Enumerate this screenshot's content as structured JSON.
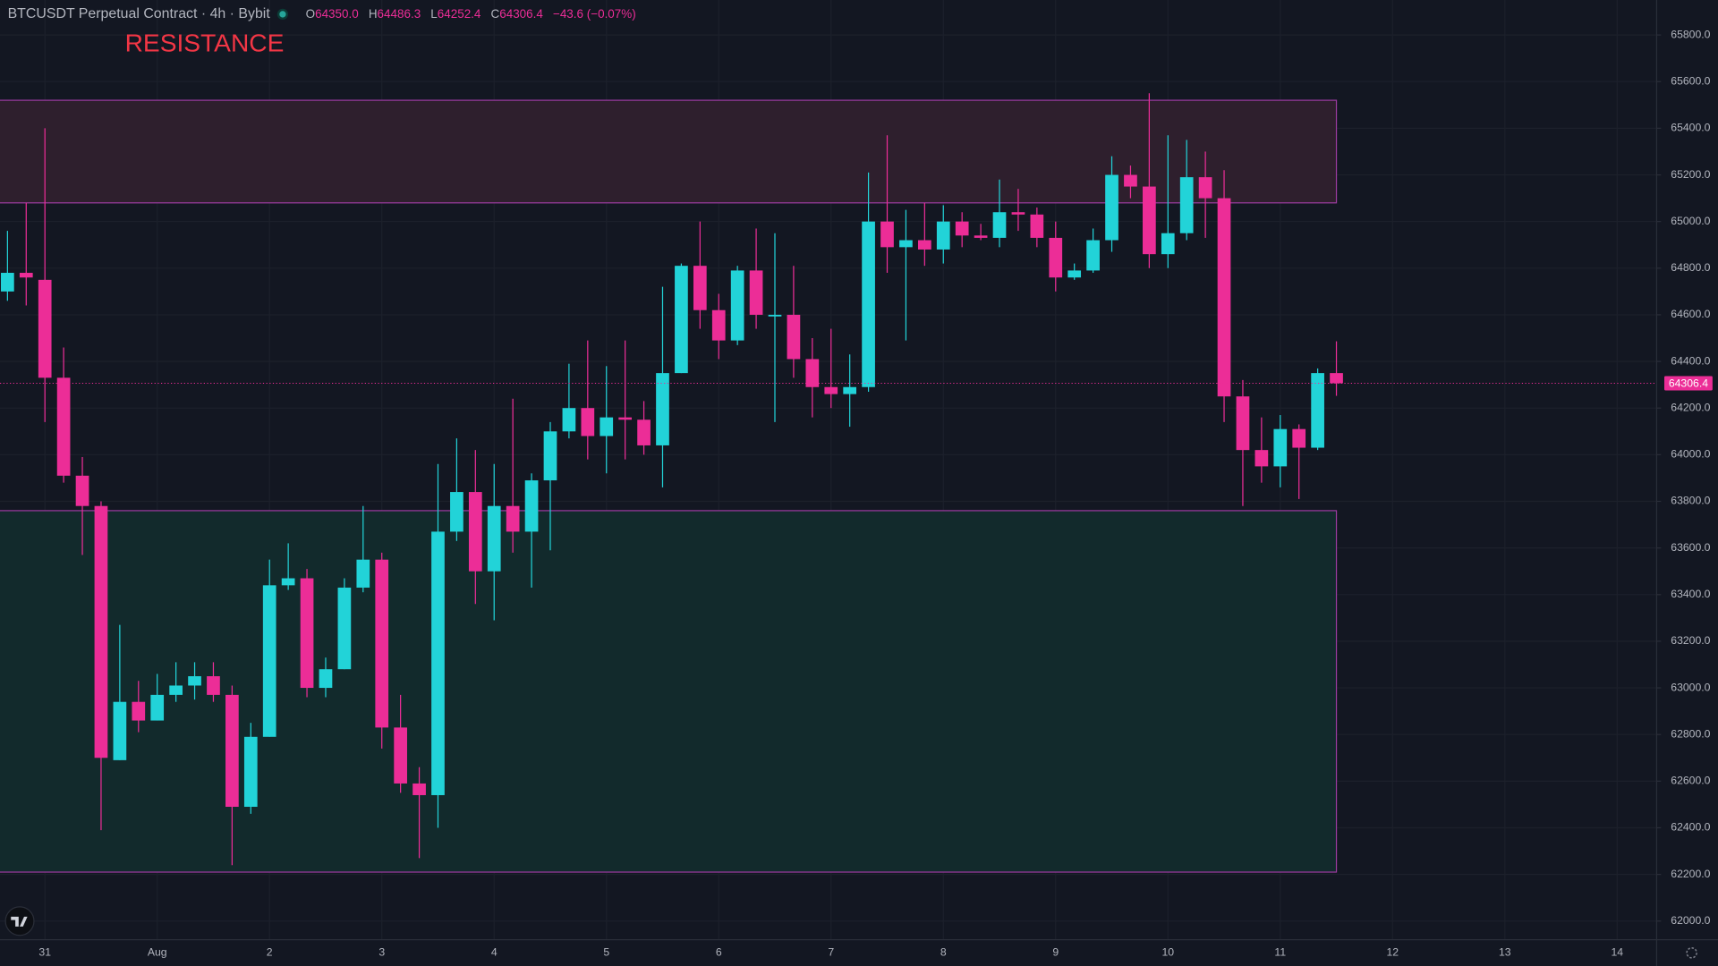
{
  "chart_data": {
    "type": "candlestick",
    "title": "BTCUSDT Perpetual Contract · 4h · Bybit",
    "ohlc_legend": [
      {
        "label": "O",
        "value": "64350.0"
      },
      {
        "label": "H",
        "value": "64486.3"
      },
      {
        "label": "L",
        "value": "64252.4"
      },
      {
        "label": "C",
        "value": "64306.4"
      }
    ],
    "change": "−43.6 (−0.07%)",
    "annotation": "RESISTANCE",
    "up_color": "#22d3d8",
    "down_color": "#ec2d97",
    "categories": [
      null,
      null,
      "31",
      null,
      null,
      null,
      null,
      null,
      "Aug",
      null,
      null,
      null,
      null,
      null,
      "2",
      null,
      null,
      null,
      null,
      null,
      "3",
      null,
      null,
      null,
      null,
      null,
      "4",
      null,
      null,
      null,
      null,
      null,
      "5",
      null,
      null,
      null,
      null,
      null,
      "6",
      null,
      null,
      null,
      null,
      null,
      "7",
      null,
      null,
      null,
      null,
      null,
      "8",
      null,
      null,
      null,
      null,
      null,
      "9",
      null,
      null,
      null,
      null,
      null,
      "10",
      null,
      null,
      null,
      null,
      null,
      "11",
      null,
      null,
      null,
      null,
      null,
      "12",
      null,
      null,
      null,
      null,
      null,
      "13",
      null,
      null,
      null,
      null,
      null,
      "14",
      null
    ],
    "open": [
      64700,
      64780,
      64750,
      64330,
      63910,
      63780,
      62690,
      62940,
      62860,
      62970,
      63010,
      63050,
      62970,
      62490,
      62790,
      63440,
      63470,
      63000,
      63080,
      63430,
      63550,
      62830,
      62590,
      62540,
      63670,
      63840,
      63500,
      63780,
      63670,
      63890,
      64100,
      64200,
      64080,
      64160,
      64150,
      64040,
      64350,
      64810,
      64620,
      64490,
      64790,
      64600,
      64600,
      64410,
      64290,
      64260,
      64290,
      65000,
      64890,
      64920,
      64880,
      65000,
      64940,
      64930,
      65040,
      65030,
      64930,
      64760,
      64790,
      64920,
      65200,
      65150,
      64860,
      64950,
      65190,
      65100,
      64250,
      64020,
      63950,
      64110,
      64030,
      64350,
      null,
      null,
      null,
      null,
      null,
      null,
      null,
      null,
      null,
      null,
      null,
      null,
      null,
      null,
      null,
      null
    ],
    "high": [
      64960,
      65080,
      65400,
      64460,
      63990,
      63800,
      63270,
      63030,
      63060,
      63110,
      63110,
      63110,
      63010,
      62850,
      63550,
      63620,
      63510,
      63130,
      63470,
      63780,
      63580,
      62970,
      62660,
      63960,
      64070,
      64020,
      63960,
      64240,
      63920,
      64140,
      64390,
      64490,
      64380,
      64490,
      64230,
      64720,
      64820,
      65000,
      64690,
      64810,
      64970,
      64950,
      64810,
      64500,
      64540,
      64430,
      65210,
      65370,
      65050,
      65080,
      65070,
      65040,
      64990,
      65180,
      65140,
      65060,
      65000,
      64820,
      64970,
      65280,
      65240,
      65550,
      65370,
      65350,
      65300,
      65220,
      64320,
      64160,
      64170,
      64130,
      64370,
      64486.3,
      null,
      null,
      null,
      null,
      null,
      null,
      null,
      null,
      null,
      null,
      null,
      null,
      null,
      null,
      null,
      null
    ],
    "low": [
      64660,
      64640,
      64140,
      63880,
      63570,
      62390,
      62690,
      62810,
      62860,
      62940,
      62950,
      62940,
      62240,
      62460,
      62790,
      63420,
      62960,
      62960,
      63080,
      63410,
      62740,
      62550,
      62270,
      62400,
      63630,
      63360,
      63290,
      63580,
      63430,
      63590,
      64070,
      63980,
      63920,
      63980,
      64000,
      63860,
      64350,
      64540,
      64410,
      64470,
      64540,
      64140,
      64330,
      64160,
      64200,
      64120,
      64270,
      64780,
      64490,
      64810,
      64820,
      64890,
      64920,
      64890,
      64960,
      64890,
      64700,
      64750,
      64780,
      64870,
      65100,
      64800,
      64800,
      64920,
      64930,
      64140,
      63780,
      63880,
      63860,
      63810,
      64020,
      64252.4,
      null,
      null,
      null,
      null,
      null,
      null,
      null,
      null,
      null,
      null,
      null,
      null,
      null,
      null,
      null,
      null
    ],
    "close": [
      64780,
      64760,
      64330,
      63910,
      63780,
      62700,
      62940,
      62860,
      62970,
      63010,
      63050,
      62970,
      62490,
      62790,
      63440,
      63470,
      63000,
      63080,
      63430,
      63550,
      62830,
      62590,
      62540,
      63670,
      63840,
      63500,
      63780,
      63670,
      63890,
      64100,
      64200,
      64080,
      64160,
      64150,
      64040,
      64350,
      64810,
      64620,
      64490,
      64790,
      64600,
      64600,
      64410,
      64290,
      64260,
      64290,
      65000,
      64890,
      64920,
      64880,
      65000,
      64940,
      64930,
      65040,
      65030,
      64930,
      64760,
      64790,
      64920,
      65200,
      65150,
      64860,
      64950,
      65190,
      65100,
      64250,
      64020,
      63950,
      64110,
      64030,
      64350,
      64306.4,
      null,
      null,
      null,
      null,
      null,
      null,
      null,
      null,
      null,
      null,
      null,
      null,
      null,
      null,
      null,
      null
    ],
    "zones": [
      {
        "low": 65080,
        "high": 65520,
        "fill": "#2e1f2d",
        "border": "#9b3ba0"
      },
      {
        "low": 62210,
        "high": 63760,
        "fill": "#122a2c",
        "border": "#9b3ba0"
      }
    ],
    "last_price": {
      "value": 64306.4,
      "label": "64306.4"
    },
    "ylim": [
      61920,
      65950
    ],
    "yticks": [
      {
        "value": 62000,
        "label": "62000.0"
      },
      {
        "value": 62200,
        "label": "62200.0"
      },
      {
        "value": 62400,
        "label": "62400.0"
      },
      {
        "value": 62600,
        "label": "62600.0"
      },
      {
        "value": 62800,
        "label": "62800.0"
      },
      {
        "value": 63000,
        "label": "63000.0"
      },
      {
        "value": 63200,
        "label": "63200.0"
      },
      {
        "value": 63400,
        "label": "63400.0"
      },
      {
        "value": 63600,
        "label": "63600.0"
      },
      {
        "value": 63800,
        "label": "63800.0"
      },
      {
        "value": 64000,
        "label": "64000.0"
      },
      {
        "value": 64200,
        "label": "64200.0"
      },
      {
        "value": 64400,
        "label": "64400.0"
      },
      {
        "value": 64600,
        "label": "64600.0"
      },
      {
        "value": 64800,
        "label": "64800.0"
      },
      {
        "value": 65000,
        "label": "65000.0"
      },
      {
        "value": 65200,
        "label": "65200.0"
      },
      {
        "value": 65400,
        "label": "65400.0"
      },
      {
        "value": 65600,
        "label": "65600.0"
      },
      {
        "value": 65800,
        "label": "65800.0"
      }
    ],
    "grid": true
  }
}
